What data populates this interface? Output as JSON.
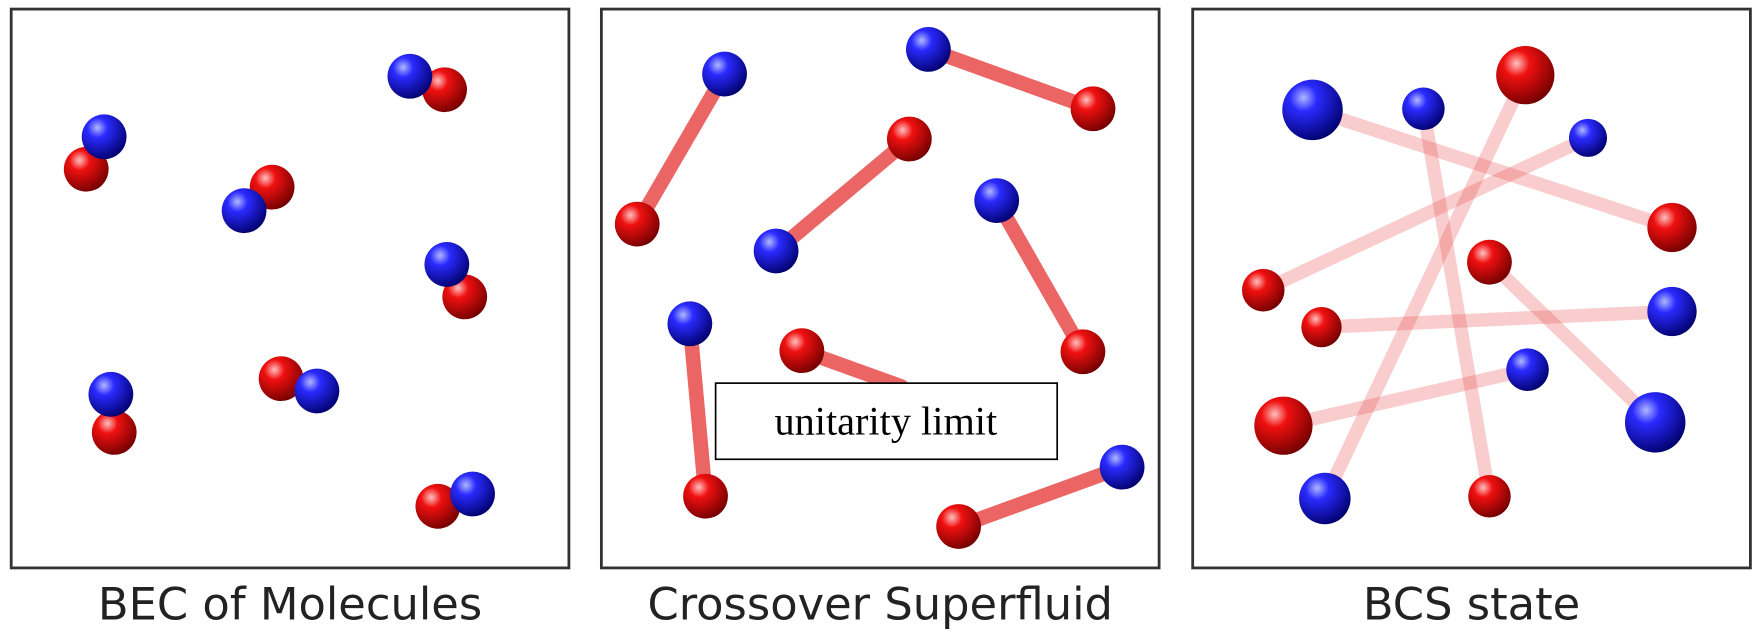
{
  "panels": [
    {
      "title": "BEC of Molecules"
    },
    {
      "title": "Crossover Superfluid"
    },
    {
      "title": "BCS state"
    }
  ],
  "annotation": "unitarity limit"
}
